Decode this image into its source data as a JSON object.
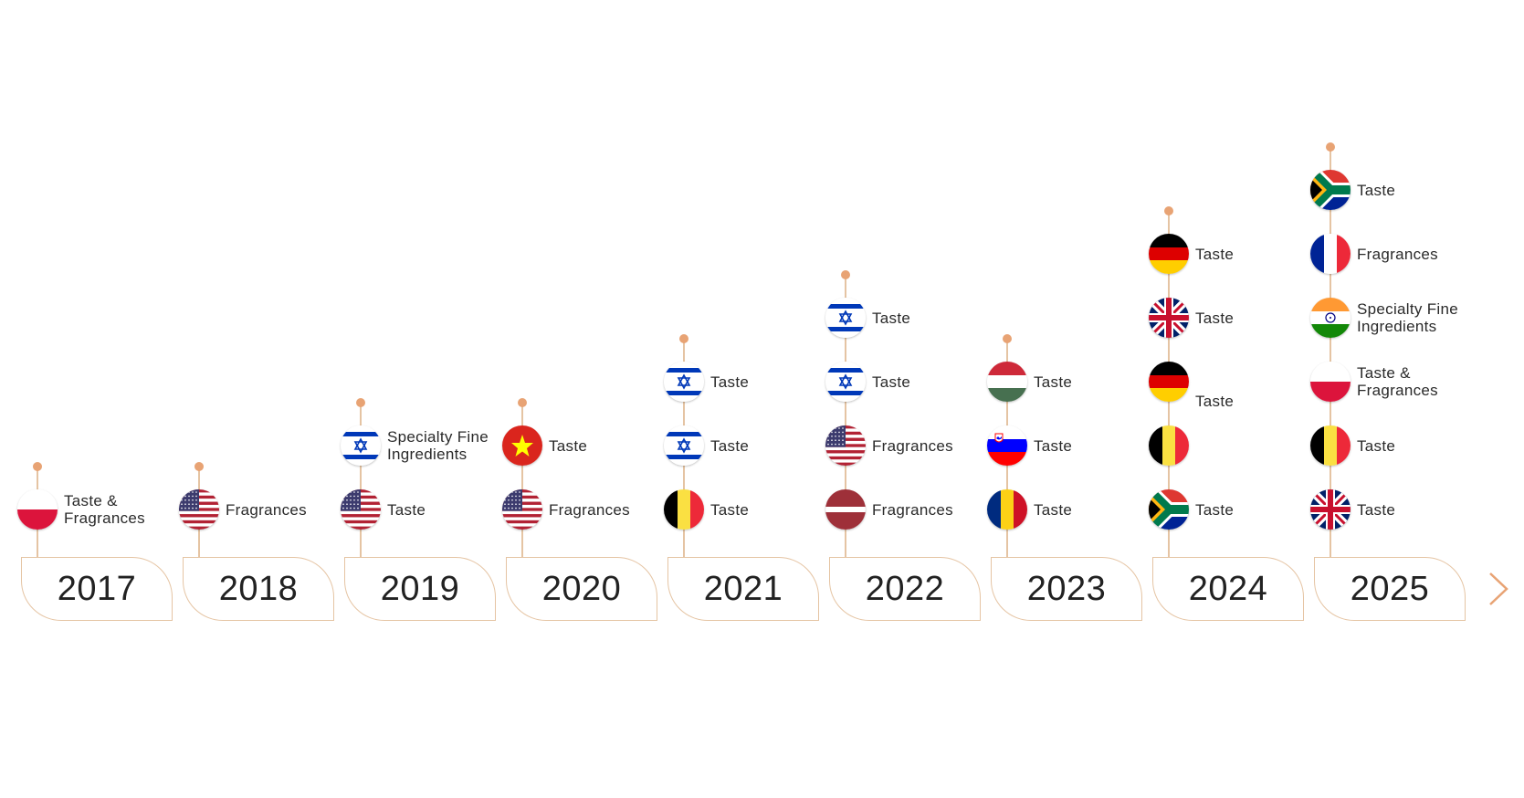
{
  "colors": {
    "accent": "#e8a374",
    "line": "#e5c4a3",
    "text": "#222222"
  },
  "timeline": [
    {
      "year": "2017",
      "entries": [
        {
          "flag": "poland",
          "label": "Taste &\nFragrances"
        }
      ]
    },
    {
      "year": "2018",
      "entries": [
        {
          "flag": "usa",
          "label": "Fragrances"
        }
      ]
    },
    {
      "year": "2019",
      "entries": [
        {
          "flag": "usa",
          "label": "Taste"
        },
        {
          "flag": "israel",
          "label": "Specialty Fine\nIngredients"
        }
      ]
    },
    {
      "year": "2020",
      "entries": [
        {
          "flag": "usa",
          "label": "Fragrances"
        },
        {
          "flag": "vietnam",
          "label": "Taste"
        }
      ]
    },
    {
      "year": "2021",
      "entries": [
        {
          "flag": "belgium",
          "label": "Taste"
        },
        {
          "flag": "israel",
          "label": "Taste"
        },
        {
          "flag": "israel",
          "label": "Taste"
        }
      ]
    },
    {
      "year": "2022",
      "entries": [
        {
          "flag": "latvia",
          "label": "Fragrances"
        },
        {
          "flag": "usa",
          "label": "Fragrances"
        },
        {
          "flag": "israel",
          "label": "Taste"
        },
        {
          "flag": "israel",
          "label": "Taste"
        }
      ]
    },
    {
      "year": "2023",
      "entries": [
        {
          "flag": "romania",
          "label": "Taste"
        },
        {
          "flag": "slovenia",
          "label": "Taste"
        },
        {
          "flag": "hungary",
          "label": "Taste"
        }
      ]
    },
    {
      "year": "2024",
      "entries": [
        {
          "flag": "south-africa",
          "label": "Taste"
        },
        {
          "flag": "belgium",
          "label": ""
        },
        {
          "flag": "germany",
          "label": "Taste"
        },
        {
          "flag": "uk",
          "label": "Taste"
        },
        {
          "flag": "germany",
          "label": "Taste"
        }
      ]
    },
    {
      "year": "2025",
      "entries": [
        {
          "flag": "uk",
          "label": "Taste"
        },
        {
          "flag": "belgium",
          "label": "Taste"
        },
        {
          "flag": "poland",
          "label": "Taste &\nFragrances"
        },
        {
          "flag": "india",
          "label": "Specialty Fine\nIngredients"
        },
        {
          "flag": "france",
          "label": "Fragrances"
        },
        {
          "flag": "south-africa",
          "label": "Taste"
        }
      ]
    }
  ],
  "navigation": {
    "next_icon": "chevron-right-icon"
  }
}
